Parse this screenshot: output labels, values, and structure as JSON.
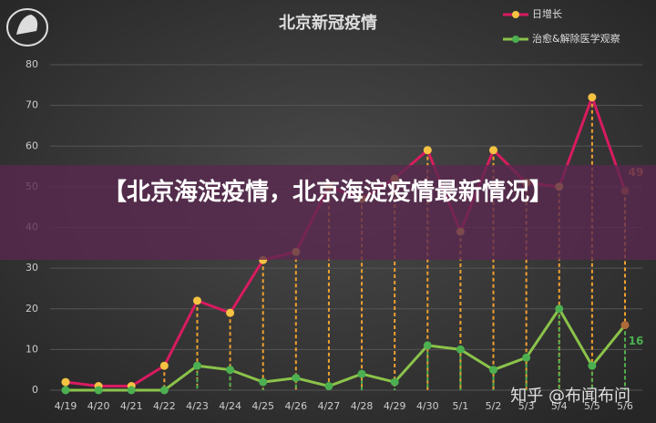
{
  "chart_data": {
    "type": "line",
    "title": "北京新冠疫情",
    "categories": [
      "4/19",
      "4/20",
      "4/21",
      "4/22",
      "4/23",
      "4/24",
      "4/25",
      "4/26",
      "4/27",
      "4/28",
      "4/29",
      "4/30",
      "5/1",
      "5/2",
      "5/3",
      "5/4",
      "5/5",
      "5/6"
    ],
    "series": [
      {
        "name": "日增长",
        "color": "#d81b60",
        "marker_color": "#f5c242",
        "values": [
          2,
          1,
          1,
          6,
          22,
          19,
          32,
          34,
          50,
          47,
          52,
          59,
          39,
          59,
          51,
          50,
          72,
          49
        ]
      },
      {
        "name": "治愈&解除医学观察",
        "color": "#8bc34a",
        "marker_color": "#4caf50",
        "values": [
          0,
          0,
          0,
          0,
          6,
          5,
          2,
          3,
          1,
          4,
          2,
          11,
          10,
          5,
          8,
          20,
          6,
          16
        ]
      }
    ],
    "ylim": [
      0,
      80
    ],
    "yticks": [
      0,
      10,
      20,
      30,
      40,
      50,
      60,
      70,
      80
    ],
    "grid": true,
    "legend": "top-right"
  },
  "overlay_text": "【北京海淀疫情，北京海淀疫情最新情况】",
  "watermark": "知乎 @布闻布问"
}
